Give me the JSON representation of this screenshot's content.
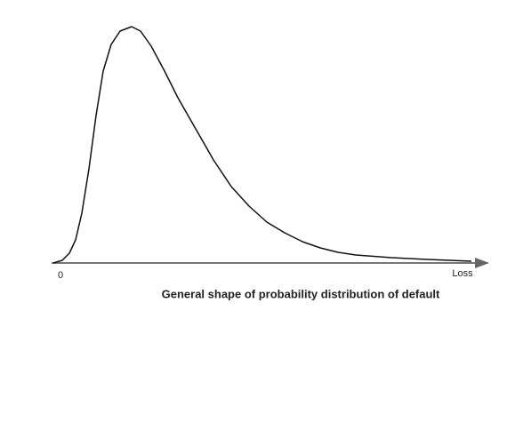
{
  "chart_data": {
    "type": "line",
    "caption": "General shape of probability distribution of default",
    "x_label": "Loss",
    "xlim": [
      -1,
      48
    ],
    "ylim": [
      0,
      27
    ],
    "xticks": [
      0
    ],
    "series": [
      {
        "color": "#111111",
        "x": [
          -0.8,
          0.2,
          1,
          1.7,
          2.4,
          3.2,
          4,
          4.8,
          5.7,
          6.7,
          8,
          9,
          10.2,
          11.7,
          13.2,
          15.2,
          17.2,
          19.2,
          21.2,
          23.2,
          25.2,
          27.2,
          29.2,
          31.2,
          33.2,
          37.2,
          41.2,
          46.2
        ],
        "values": [
          0,
          0.3,
          1.1,
          2.6,
          5.6,
          10.6,
          16.6,
          21.6,
          24.6,
          26.1,
          26.6,
          26.1,
          24.4,
          21.6,
          18.6,
          15.1,
          11.6,
          8.6,
          6.4,
          4.6,
          3.4,
          2.4,
          1.7,
          1.2,
          0.9,
          0.6,
          0.4,
          0.2
        ]
      }
    ]
  }
}
